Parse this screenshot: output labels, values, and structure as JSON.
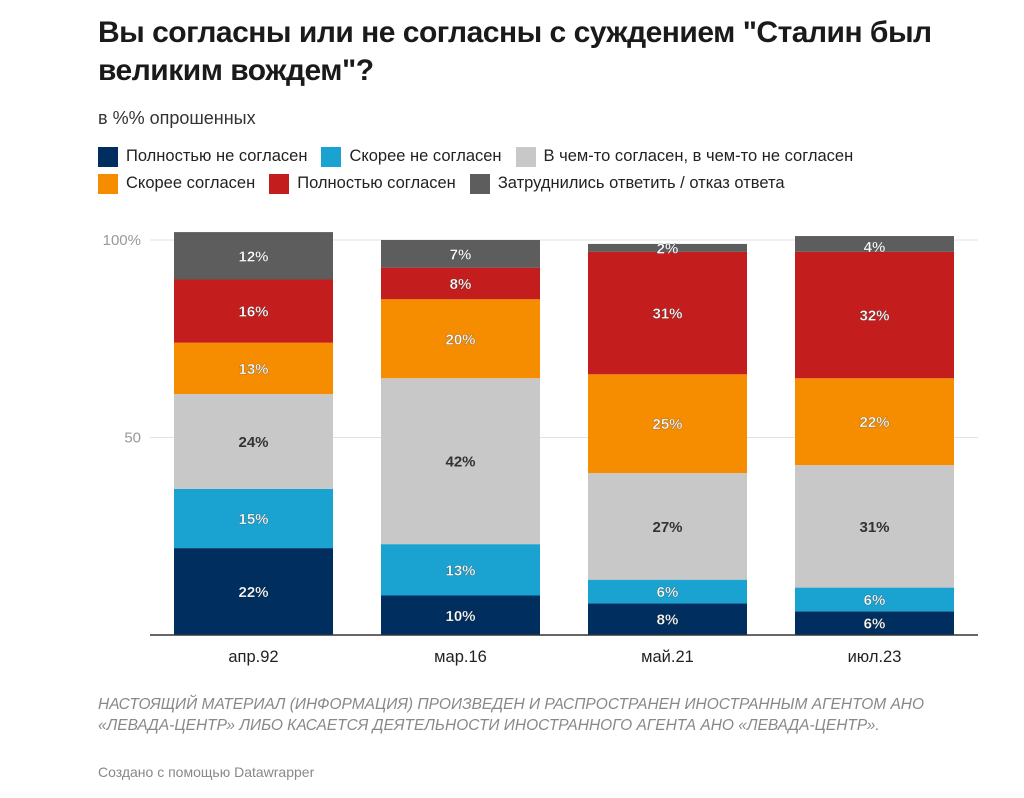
{
  "header": {
    "title": "Вы согласны или не согласны с суждением \"Сталин был великим вождем\"?",
    "subtitle": "в %% опрошенных"
  },
  "chart_data": {
    "type": "bar",
    "stacked": true,
    "categories": [
      "апр.92",
      "мар.16",
      "май.21",
      "июл.23"
    ],
    "series": [
      {
        "name": "Полностью не согласен",
        "color": "#002f5f",
        "values": [
          22,
          10,
          8,
          6
        ]
      },
      {
        "name": "Скорее не согласен",
        "color": "#1aa3d1",
        "values": [
          15,
          13,
          6,
          6
        ]
      },
      {
        "name": "В чем-то согласен, в чем-то не согласен",
        "color": "#c8c8c8",
        "values": [
          24,
          42,
          27,
          31
        ]
      },
      {
        "name": "Скорее согласен",
        "color": "#f68c00",
        "values": [
          13,
          20,
          25,
          22
        ]
      },
      {
        "name": "Полностью согласен",
        "color": "#c41d1d",
        "values": [
          16,
          8,
          31,
          32
        ]
      },
      {
        "name": "Затруднились ответить / отказ ответа",
        "color": "#5d5d5d",
        "values": [
          12,
          7,
          2,
          4
        ]
      }
    ],
    "y_ticks": [
      {
        "value": 100,
        "label": "100%"
      },
      {
        "value": 50,
        "label": "50"
      }
    ],
    "ylim": [
      0,
      100
    ],
    "grid": true,
    "legend_position": "top"
  },
  "footer": {
    "note": "НАСТОЯЩИЙ МАТЕРИАЛ (ИНФОРМАЦИЯ) ПРОИЗВЕДЕН И РАСПРОСТРАНЕН ИНОСТРАННЫМ АГЕНТОМ АНО «ЛЕВАДА-ЦЕНТР» ЛИБО КАСАЕТСЯ ДЕЯТЕЛЬНОСТИ ИНОСТРАННОГО АГЕНТА АНО «ЛЕВАДА-ЦЕНТР».",
    "credit": "Создано с помощью Datawrapper"
  }
}
